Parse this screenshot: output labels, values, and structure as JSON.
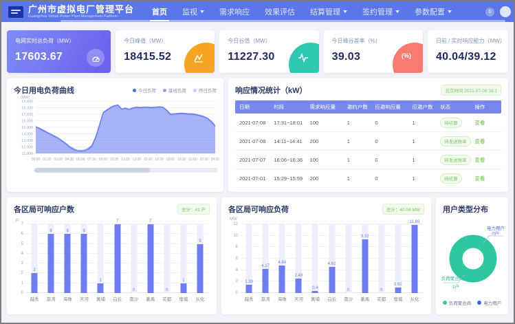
{
  "header": {
    "title": "广州市虚拟电厂管理平台",
    "subtitle": "Guangzhou Virtual Power Plant Management Platform",
    "nav": [
      {
        "label": "首页",
        "active": true
      },
      {
        "label": "监视",
        "dropdown": true
      },
      {
        "label": "需求响应"
      },
      {
        "label": "效果评估"
      },
      {
        "label": "结算管理",
        "dropdown": true
      },
      {
        "label": "签约管理",
        "dropdown": true
      },
      {
        "label": "参数配置",
        "dropdown": true
      }
    ],
    "notification_count": "0"
  },
  "kpi_cards": [
    {
      "label": "电网实时总负荷（MW）",
      "value": "17603.67",
      "icon": "gauge-icon",
      "accent": "#6a5fee"
    },
    {
      "label": "今日峰值（MW）",
      "value": "18415.52",
      "icon": "peak-chart-icon",
      "accent": "#f6a523"
    },
    {
      "label": "今日谷值（MW）",
      "value": "11227.30",
      "icon": "pulse-icon",
      "accent": "#2ec7b2"
    },
    {
      "label": "今日峰谷差率（%）",
      "value": "39.03",
      "icon": "percent-icon",
      "accent": "#f87b72"
    },
    {
      "label": "日前 / 实时响应能力（MW）",
      "value": "40.04/39.12",
      "icon": null,
      "accent": null
    }
  ],
  "table": {
    "title": "响应情况统计（kW）",
    "timestamp_badge": "北京时间 2021-07-08 18:1",
    "columns": [
      "日期",
      "时段",
      "需求响应量",
      "邀约户数",
      "应邀响应量",
      "应邀户数",
      "状态",
      "操作"
    ],
    "rows": [
      {
        "date": "2021-07-08",
        "period": "17:31~18:01",
        "demand": "100",
        "invited": "1",
        "response": "0",
        "responders": "1",
        "status": "待结算",
        "action": "查看"
      },
      {
        "date": "2021-07-08",
        "period": "14:11~14:41",
        "demand": "200",
        "invited": "1",
        "response": "0",
        "responders": "1",
        "status": "待发送账单",
        "action": "查看"
      },
      {
        "date": "2021-07-07",
        "period": "16:06~16:36",
        "demand": "100",
        "invited": "1",
        "response": "0",
        "responders": "1",
        "status": "待发送账单",
        "action": "查看"
      },
      {
        "date": "2021-07-01",
        "period": "15:29~15:59",
        "demand": "200",
        "invited": "1",
        "response": "0",
        "responders": "1",
        "status": "待结算",
        "action": "查看"
      }
    ]
  },
  "colors": {
    "header": "#5b76e8",
    "bar": "#6e7ef1",
    "green_status": "#67c23a",
    "orange": "#f6a523",
    "teal": "#2ec7b2",
    "red": "#f87b72",
    "donut_teal": "#2fc6a2",
    "donut_blue": "#3a6af0"
  },
  "chart_data": [
    {
      "type": "area",
      "title": "今日用电负荷曲线",
      "ylabel": "(MW)",
      "ylim": [
        11000,
        19000
      ],
      "y_step": 1000,
      "x_labels": [
        "00:00",
        "01:30",
        "03:00",
        "04:30",
        "06:00",
        "07:30",
        "09:00",
        "10:30",
        "12:00",
        "13:30",
        "15:00",
        "16:30",
        "18:00",
        "19:30",
        "21:00",
        "22:30",
        "24:00"
      ],
      "series": [
        {
          "name": "今日负荷",
          "color": "#4f68e6",
          "fill": "rgba(124,140,245,0.45)",
          "values": [
            15050,
            14800,
            14500,
            14200,
            13900,
            13600,
            13300,
            12900,
            12500,
            12000,
            11650,
            11400,
            11350,
            11400,
            11650,
            12100,
            13400,
            15200,
            17200,
            17600,
            18000,
            18300,
            18450,
            17750,
            17900,
            17700,
            17950,
            18050,
            18000,
            18050,
            18050,
            18000,
            18050,
            18100,
            18050,
            17600,
            16950,
            17000,
            17050,
            17100,
            17050,
            17000,
            17000,
            16900,
            16750,
            16600,
            16300,
            15800,
            15150
          ]
        },
        {
          "name": "基线负荷",
          "color": "#93a2f2",
          "fill": "rgba(147,162,242,0.35)",
          "values": [
            15150,
            14900,
            14620,
            14300,
            14000,
            13720,
            13400,
            13020,
            12620,
            12150,
            11800,
            11560,
            11500,
            11560,
            11800,
            12260,
            13560,
            15360,
            17300,
            17700,
            18080,
            18360,
            18380,
            17850,
            17980,
            17820,
            18020,
            18100,
            18060,
            18100,
            18120,
            18060,
            18100,
            18160,
            18100,
            17700,
            17100,
            17120,
            17160,
            17200,
            17160,
            17120,
            17100,
            17000,
            16860,
            16700,
            16420,
            15940,
            15300
          ]
        },
        {
          "name": "昨日负荷",
          "color": "#c3cdf5",
          "fill": "rgba(199,209,248,0.40)",
          "values": [
            14900,
            14650,
            14380,
            14050,
            13750,
            13460,
            13120,
            12740,
            12340,
            11880,
            11560,
            11300,
            11260,
            11320,
            11560,
            12000,
            13200,
            15000,
            17000,
            17420,
            17850,
            18150,
            18280,
            17600,
            17750,
            17580,
            17820,
            17920,
            17880,
            17920,
            17930,
            17880,
            17920,
            17980,
            17930,
            17500,
            16820,
            16870,
            16920,
            16960,
            16920,
            16880,
            16870,
            16780,
            16620,
            16460,
            16150,
            15650,
            15000
          ]
        }
      ]
    },
    {
      "type": "bar",
      "title": "各区局可响应户数",
      "total_badge": "总计：41 户",
      "ylabel": "户",
      "ylim": [
        0,
        7
      ],
      "y_step": 1,
      "categories": [
        "越秀",
        "荔湾",
        "海珠",
        "天河",
        "黄埔",
        "白云",
        "南沙",
        "番禺",
        "花都",
        "增城",
        "从化"
      ],
      "values": [
        2,
        6,
        6,
        6,
        1,
        7,
        0,
        7,
        0,
        1,
        5
      ]
    },
    {
      "type": "bar",
      "title": "各区局可响应负荷",
      "total_badge": "总计：40.04 MW",
      "ylabel": "MW",
      "ylim": [
        0,
        12
      ],
      "y_step": 2,
      "categories": [
        "越秀",
        "荔湾",
        "海珠",
        "天河",
        "黄埔",
        "白云",
        "南沙",
        "番禺",
        "花都",
        "增城",
        "从化"
      ],
      "values": [
        1.39,
        4.17,
        4.84,
        2.49,
        0.4,
        4.62,
        0,
        9.32,
        0,
        0.92,
        11.89
      ]
    },
    {
      "type": "pie",
      "title": "用户类型分布",
      "segments": [
        {
          "label": "负荷聚合商",
          "value": 1,
          "value_label": "1户",
          "color": "#2fc6a2"
        },
        {
          "label": "电力用户",
          "value": 0,
          "value_label": "0户",
          "color": "#3a6af0"
        }
      ]
    }
  ]
}
